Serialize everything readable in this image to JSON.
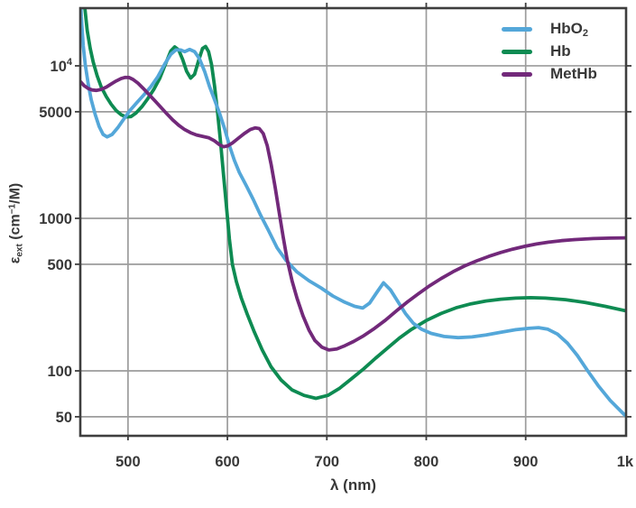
{
  "chart_data": {
    "type": "line",
    "title": "",
    "xlabel": "λ (nm)",
    "ylabel": "ε_ext (cm⁻¹/M)",
    "x_scale": "linear",
    "y_scale": "log",
    "xlim": [
      452,
      1001
    ],
    "ylim": [
      37.5,
      23900
    ],
    "grid": true,
    "legend_position": "top-right",
    "x_ticks": [
      {
        "v": 500,
        "label": "500"
      },
      {
        "v": 600,
        "label": "600"
      },
      {
        "v": 700,
        "label": "700"
      },
      {
        "v": 800,
        "label": "800"
      },
      {
        "v": 900,
        "label": "900"
      },
      {
        "v": 1000,
        "label": "1k"
      }
    ],
    "y_ticks": [
      {
        "v": 10000,
        "label": "10",
        "sup": "4"
      },
      {
        "v": 5000,
        "label": "5000"
      },
      {
        "v": 1000,
        "label": "1000"
      },
      {
        "v": 500,
        "label": "500"
      },
      {
        "v": 100,
        "label": "100"
      },
      {
        "v": 50,
        "label": "50"
      }
    ],
    "series": [
      {
        "name": "HbO2",
        "label": "HbO",
        "label_sub": "2",
        "color": "#54A7D9",
        "points": [
          [
            452,
            30000
          ],
          [
            453,
            21000
          ],
          [
            455,
            13500
          ],
          [
            457,
            10200
          ],
          [
            460,
            7600
          ],
          [
            463,
            6000
          ],
          [
            467,
            4800
          ],
          [
            471,
            4000
          ],
          [
            475,
            3550
          ],
          [
            479,
            3420
          ],
          [
            484,
            3550
          ],
          [
            490,
            3950
          ],
          [
            496,
            4500
          ],
          [
            502,
            5100
          ],
          [
            509,
            5750
          ],
          [
            516,
            6450
          ],
          [
            523,
            7300
          ],
          [
            530,
            8500
          ],
          [
            537,
            10300
          ],
          [
            543,
            11900
          ],
          [
            548,
            12700
          ],
          [
            553,
            12700
          ],
          [
            557,
            12400
          ],
          [
            562,
            12800
          ],
          [
            567,
            12400
          ],
          [
            572,
            11100
          ],
          [
            577,
            9200
          ],
          [
            582,
            7300
          ],
          [
            587,
            6000
          ],
          [
            592,
            4900
          ],
          [
            597,
            3900
          ],
          [
            602,
            3000
          ],
          [
            607,
            2400
          ],
          [
            612,
            2000
          ],
          [
            619,
            1640
          ],
          [
            626,
            1330
          ],
          [
            633,
            1060
          ],
          [
            641,
            840
          ],
          [
            650,
            640
          ],
          [
            659,
            530
          ],
          [
            670,
            445
          ],
          [
            682,
            390
          ],
          [
            694,
            350
          ],
          [
            706,
            310
          ],
          [
            718,
            282
          ],
          [
            728,
            265
          ],
          [
            736,
            258
          ],
          [
            743,
            278
          ],
          [
            750,
            325
          ],
          [
            757,
            378
          ],
          [
            764,
            340
          ],
          [
            771,
            288
          ],
          [
            779,
            238
          ],
          [
            787,
            205
          ],
          [
            795,
            188
          ],
          [
            805,
            176
          ],
          [
            818,
            168
          ],
          [
            832,
            165
          ],
          [
            846,
            167
          ],
          [
            860,
            172
          ],
          [
            875,
            179
          ],
          [
            890,
            186
          ],
          [
            903,
            190
          ],
          [
            913,
            192
          ],
          [
            922,
            188
          ],
          [
            932,
            174
          ],
          [
            942,
            152
          ],
          [
            952,
            126
          ],
          [
            962,
            101
          ],
          [
            973,
            80
          ],
          [
            985,
            64
          ],
          [
            1000,
            51
          ]
        ]
      },
      {
        "name": "Hb",
        "label": "Hb",
        "label_sub": "",
        "color": "#0E8B52",
        "points": [
          [
            456,
            26000
          ],
          [
            459,
            17000
          ],
          [
            462,
            13000
          ],
          [
            465,
            10600
          ],
          [
            469,
            8600
          ],
          [
            473,
            7300
          ],
          [
            478,
            6300
          ],
          [
            483,
            5600
          ],
          [
            488,
            5100
          ],
          [
            493,
            4780
          ],
          [
            498,
            4620
          ],
          [
            503,
            4650
          ],
          [
            508,
            4900
          ],
          [
            514,
            5400
          ],
          [
            520,
            6100
          ],
          [
            526,
            7000
          ],
          [
            532,
            8300
          ],
          [
            538,
            10400
          ],
          [
            543,
            12500
          ],
          [
            547,
            13300
          ],
          [
            551,
            12700
          ],
          [
            555,
            11000
          ],
          [
            559,
            9200
          ],
          [
            563,
            8300
          ],
          [
            567,
            8800
          ],
          [
            571,
            10800
          ],
          [
            575,
            13000
          ],
          [
            578,
            13400
          ],
          [
            581,
            12400
          ],
          [
            584,
            10200
          ],
          [
            587,
            7400
          ],
          [
            590,
            5000
          ],
          [
            593,
            3200
          ],
          [
            596,
            1950
          ],
          [
            599,
            1200
          ],
          [
            602,
            730
          ],
          [
            605,
            500
          ],
          [
            609,
            385
          ],
          [
            614,
            300
          ],
          [
            620,
            235
          ],
          [
            627,
            180
          ],
          [
            635,
            137
          ],
          [
            644,
            106
          ],
          [
            654,
            87
          ],
          [
            665,
            75
          ],
          [
            677,
            69
          ],
          [
            689,
            66
          ],
          [
            701,
            69
          ],
          [
            713,
            77
          ],
          [
            725,
            89
          ],
          [
            737,
            103
          ],
          [
            749,
            121
          ],
          [
            761,
            141
          ],
          [
            773,
            164
          ],
          [
            785,
            187
          ],
          [
            800,
            214
          ],
          [
            815,
            238
          ],
          [
            830,
            259
          ],
          [
            845,
            275
          ],
          [
            860,
            287
          ],
          [
            875,
            295
          ],
          [
            890,
            300
          ],
          [
            905,
            302
          ],
          [
            920,
            300
          ],
          [
            940,
            293
          ],
          [
            960,
            281
          ],
          [
            980,
            265
          ],
          [
            1000,
            248
          ]
        ]
      },
      {
        "name": "MetHb",
        "label": "MetHb",
        "label_sub": "",
        "color": "#72297A",
        "points": [
          [
            452,
            7900
          ],
          [
            456,
            7400
          ],
          [
            460,
            7100
          ],
          [
            464,
            6950
          ],
          [
            468,
            6900
          ],
          [
            473,
            7000
          ],
          [
            478,
            7250
          ],
          [
            483,
            7600
          ],
          [
            488,
            7950
          ],
          [
            493,
            8250
          ],
          [
            497,
            8400
          ],
          [
            501,
            8380
          ],
          [
            505,
            8150
          ],
          [
            510,
            7700
          ],
          [
            515,
            7150
          ],
          [
            521,
            6500
          ],
          [
            527,
            5900
          ],
          [
            533,
            5350
          ],
          [
            539,
            4850
          ],
          [
            545,
            4420
          ],
          [
            551,
            4080
          ],
          [
            557,
            3820
          ],
          [
            563,
            3640
          ],
          [
            569,
            3520
          ],
          [
            575,
            3450
          ],
          [
            581,
            3380
          ],
          [
            587,
            3220
          ],
          [
            592,
            3040
          ],
          [
            596,
            2950
          ],
          [
            600,
            2980
          ],
          [
            605,
            3120
          ],
          [
            611,
            3350
          ],
          [
            617,
            3600
          ],
          [
            623,
            3820
          ],
          [
            628,
            3920
          ],
          [
            632,
            3880
          ],
          [
            636,
            3600
          ],
          [
            640,
            3000
          ],
          [
            644,
            2250
          ],
          [
            648,
            1600
          ],
          [
            652,
            1100
          ],
          [
            656,
            760
          ],
          [
            660,
            540
          ],
          [
            665,
            390
          ],
          [
            670,
            300
          ],
          [
            676,
            230
          ],
          [
            682,
            185
          ],
          [
            688,
            158
          ],
          [
            695,
            143
          ],
          [
            702,
            137
          ],
          [
            710,
            139
          ],
          [
            718,
            146
          ],
          [
            727,
            156
          ],
          [
            737,
            170
          ],
          [
            748,
            190
          ],
          [
            759,
            215
          ],
          [
            770,
            247
          ],
          [
            781,
            283
          ],
          [
            792,
            320
          ],
          [
            803,
            360
          ],
          [
            815,
            403
          ],
          [
            827,
            447
          ],
          [
            839,
            489
          ],
          [
            851,
            527
          ],
          [
            863,
            563
          ],
          [
            875,
            597
          ],
          [
            887,
            628
          ],
          [
            899,
            655
          ],
          [
            911,
            679
          ],
          [
            923,
            698
          ],
          [
            936,
            714
          ],
          [
            950,
            726
          ],
          [
            968,
            737
          ],
          [
            985,
            742
          ],
          [
            1000,
            745
          ]
        ]
      }
    ]
  },
  "axes": {
    "x": {
      "label": "λ (nm)"
    },
    "y": {
      "label_parts": {
        "symbol": "ε",
        "sub": "ext",
        "unit_pre": " (cm",
        "sup": "−1",
        "unit_post": "/M)"
      }
    }
  },
  "style": {
    "grid_color": "#9C9C9C",
    "border_color": "#3E3E3E",
    "text_color": "#383838",
    "background": "#FFFFFF"
  }
}
